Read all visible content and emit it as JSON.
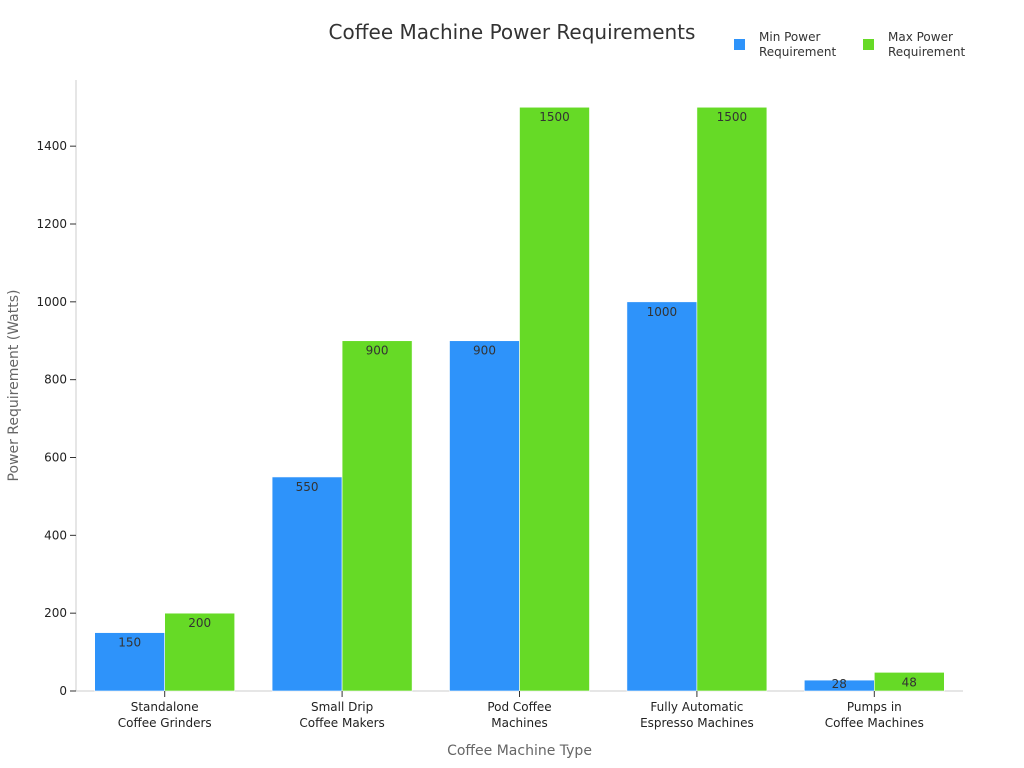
{
  "chart_data": {
    "type": "bar",
    "title": "Coffee Machine Power Requirements",
    "xlabel": "Coffee Machine Type",
    "ylabel": "Power Requirement (Watts)",
    "ylim": [
      0,
      1570
    ],
    "yticks": [
      0,
      200,
      400,
      600,
      800,
      1000,
      1200,
      1400
    ],
    "categories": [
      [
        "Standalone",
        "Coffee Grinders"
      ],
      [
        "Small Drip",
        "Coffee Makers"
      ],
      [
        "Pod Coffee",
        "Machines"
      ],
      [
        "Fully Automatic",
        "Espresso Machines"
      ],
      [
        "Pumps in",
        "Coffee Machines"
      ]
    ],
    "series": [
      {
        "name": "Min Power Requirement",
        "legend_lines": [
          "Min Power",
          "Requirement"
        ],
        "color": "#2e93fa",
        "values": [
          150,
          550,
          900,
          1000,
          28
        ]
      },
      {
        "name": "Max Power Requirement",
        "legend_lines": [
          "Max Power",
          "Requirement"
        ],
        "color": "#66da26",
        "values": [
          200,
          900,
          1500,
          1500,
          48
        ]
      }
    ],
    "grid": false,
    "legend_position": "top-right"
  }
}
